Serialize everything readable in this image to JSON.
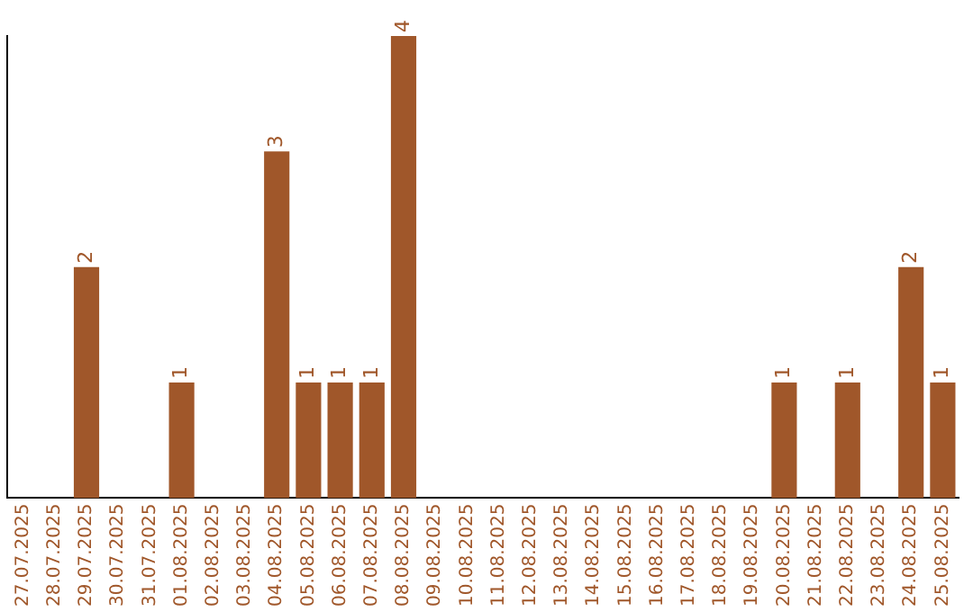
{
  "chart_data": {
    "type": "bar",
    "categories": [
      "27.07.2025",
      "28.07.2025",
      "29.07.2025",
      "30.07.2025",
      "31.07.2025",
      "01.08.2025",
      "02.08.2025",
      "03.08.2025",
      "04.08.2025",
      "05.08.2025",
      "06.08.2025",
      "07.08.2025",
      "08.08.2025",
      "09.08.2025",
      "10.08.2025",
      "11.08.2025",
      "12.08.2025",
      "13.08.2025",
      "14.08.2025",
      "15.08.2025",
      "16.08.2025",
      "17.08.2025",
      "18.08.2025",
      "19.08.2025",
      "20.08.2025",
      "21.08.2025",
      "22.08.2025",
      "23.08.2025",
      "24.08.2025",
      "25.08.2025"
    ],
    "values": [
      0,
      0,
      2,
      0,
      0,
      1,
      0,
      0,
      3,
      1,
      1,
      1,
      4,
      0,
      0,
      0,
      0,
      0,
      0,
      0,
      0,
      0,
      0,
      0,
      1,
      0,
      1,
      0,
      2,
      1
    ],
    "value_labels": [
      null,
      null,
      "2",
      null,
      null,
      "1",
      null,
      null,
      "3",
      "1",
      "1",
      "1",
      "4",
      null,
      null,
      null,
      null,
      null,
      null,
      null,
      null,
      null,
      null,
      null,
      "1",
      null,
      "1",
      null,
      "2",
      "1"
    ],
    "color": "#a0572a",
    "ylim": [
      0,
      4
    ],
    "grid": false,
    "legend": false,
    "tick_labels": "x"
  }
}
